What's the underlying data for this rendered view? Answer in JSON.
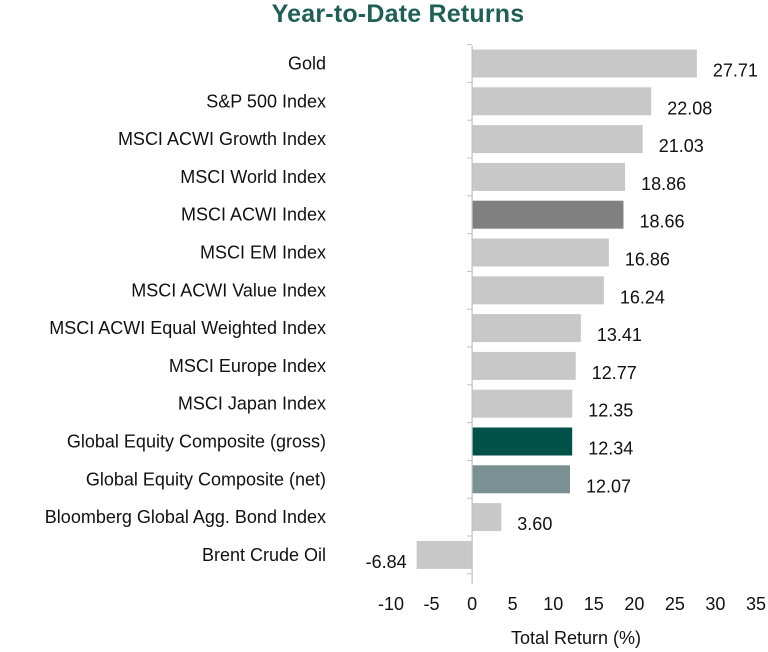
{
  "chart_data": {
    "type": "bar",
    "orientation": "horizontal",
    "title": "Year-to-Date Returns",
    "xlabel": "Total Return (%)",
    "ylabel": "",
    "xlim": [
      -10,
      35
    ],
    "xticks": [
      -10,
      -5,
      0,
      5,
      10,
      15,
      20,
      25,
      30,
      35
    ],
    "grid": false,
    "legend": "none",
    "categories": [
      "Gold",
      "S&P 500 Index",
      "MSCI ACWI Growth Index",
      "MSCI World Index",
      "MSCI ACWI Index",
      "MSCI EM Index",
      "MSCI ACWI Value Index",
      "MSCI ACWI Equal Weighted Index",
      "MSCI Europe Index",
      "MSCI Japan Index",
      "Global Equity Composite (gross)",
      "Global Equity Composite (net)",
      "Bloomberg Global Agg. Bond Index",
      "Brent Crude Oil"
    ],
    "values": [
      27.71,
      22.08,
      21.03,
      18.86,
      18.66,
      16.86,
      16.24,
      13.41,
      12.77,
      12.35,
      12.34,
      12.07,
      3.6,
      -6.84
    ],
    "value_labels": [
      "27.71",
      "22.08",
      "21.03",
      "18.86",
      "18.66",
      "16.86",
      "16.24",
      "13.41",
      "12.77",
      "12.35",
      "12.34",
      "12.07",
      "3.60",
      "-6.84"
    ],
    "bar_colors": [
      "#c8c8c8",
      "#c8c8c8",
      "#c8c8c8",
      "#c8c8c8",
      "#808080",
      "#c8c8c8",
      "#c8c8c8",
      "#c8c8c8",
      "#c8c8c8",
      "#c8c8c8",
      "#02524a",
      "#7a9093",
      "#c8c8c8",
      "#c8c8c8"
    ]
  },
  "colors": {
    "title": "#1f5f55",
    "axis_line": "#bfbfbf",
    "text": "#111111"
  }
}
